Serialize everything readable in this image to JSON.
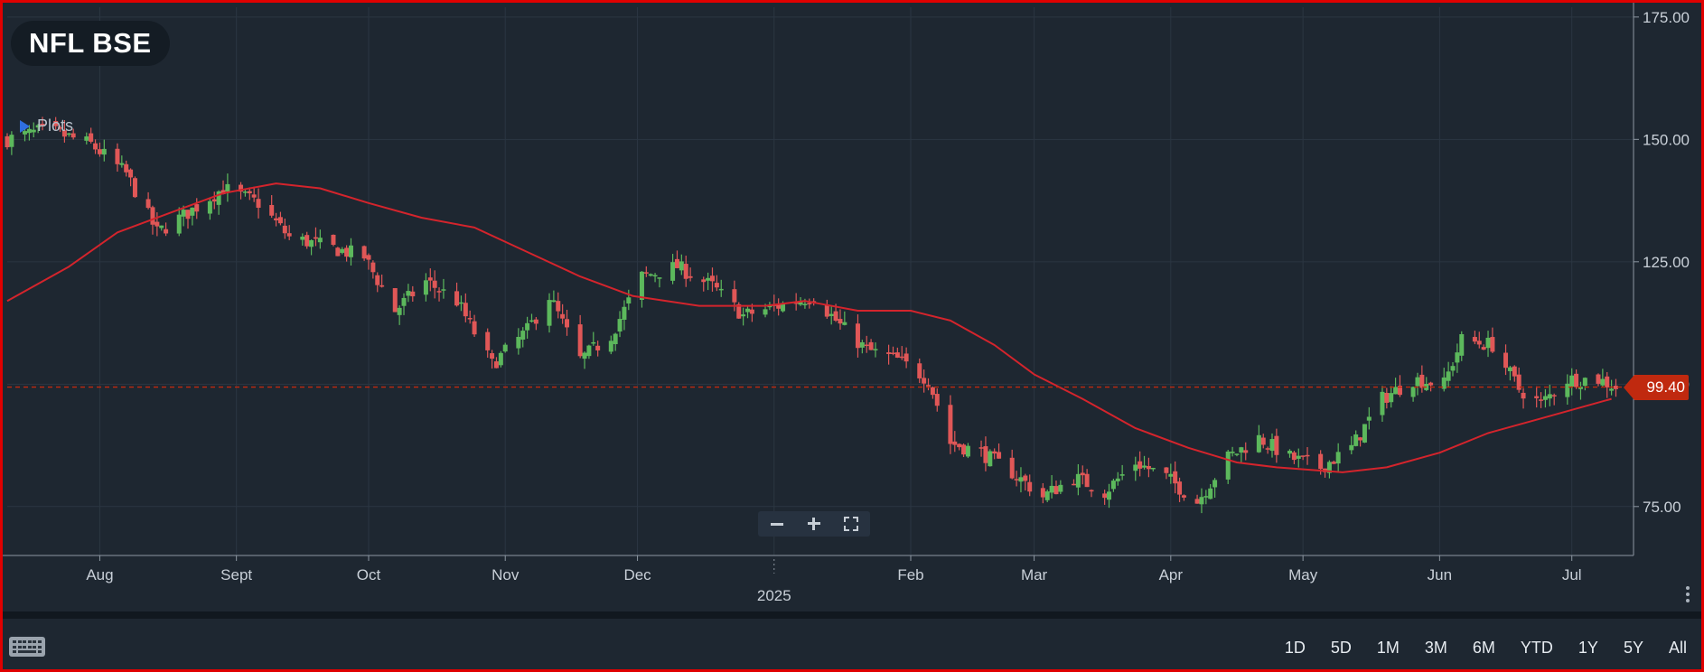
{
  "symbol": "NFL BSE",
  "plots_label": "Plots",
  "last_price_label": "99.40",
  "range_buttons": [
    "1D",
    "5D",
    "1M",
    "3M",
    "6M",
    "YTD",
    "1Y",
    "5Y",
    "All"
  ],
  "colors": {
    "background": "#1e2731",
    "up_candle": "#5cb85c",
    "down_candle": "#e05757",
    "moving_average": "#d4242c",
    "last_price": "#c0290f",
    "grid": "#2b3642",
    "axis_text": "#c9d0d8"
  },
  "chart_data": {
    "type": "candlestick",
    "title": "NFL BSE",
    "y_axis": {
      "min": 65,
      "max": 177,
      "ticks": [
        "75.00",
        "100.00",
        "125.00",
        "150.00",
        "175.00"
      ],
      "tick_values": [
        75,
        100,
        125,
        150,
        175
      ],
      "position": "right"
    },
    "x_axis": {
      "start": "2024-07-11",
      "end": "2025-07-15",
      "month_ticks": [
        {
          "label": "Aug",
          "date": "2024-08-01"
        },
        {
          "label": "Sept",
          "date": "2024-09-01"
        },
        {
          "label": "Oct",
          "date": "2024-10-01"
        },
        {
          "label": "Nov",
          "date": "2024-11-01"
        },
        {
          "label": "Dec",
          "date": "2024-12-01"
        },
        {
          "label": "Feb",
          "date": "2025-02-01"
        },
        {
          "label": "Mar",
          "date": "2025-03-01"
        },
        {
          "label": "Apr",
          "date": "2025-04-01"
        },
        {
          "label": "May",
          "date": "2025-05-01"
        },
        {
          "label": "Jun",
          "date": "2025-06-01"
        },
        {
          "label": "Jul",
          "date": "2025-07-01"
        }
      ],
      "year_label": {
        "label": "2025",
        "date": "2025-01-01"
      }
    },
    "grid": true,
    "last_price": 99.4,
    "price_path_anchors": [
      [
        "2024-07-11",
        150
      ],
      [
        "2024-07-20",
        152
      ],
      [
        "2024-07-30",
        149
      ],
      [
        "2024-08-07",
        143
      ],
      [
        "2024-08-14",
        131
      ],
      [
        "2024-08-21",
        135
      ],
      [
        "2024-08-29",
        140
      ],
      [
        "2024-09-06",
        137
      ],
      [
        "2024-09-13",
        130
      ],
      [
        "2024-09-22",
        128
      ],
      [
        "2024-09-30",
        126
      ],
      [
        "2024-10-07",
        115
      ],
      [
        "2024-10-14",
        121
      ],
      [
        "2024-10-21",
        117
      ],
      [
        "2024-10-29",
        104
      ],
      [
        "2024-11-06",
        111
      ],
      [
        "2024-11-11",
        118
      ],
      [
        "2024-11-18",
        105
      ],
      [
        "2024-11-25",
        110
      ],
      [
        "2024-12-02",
        122
      ],
      [
        "2024-12-10",
        124
      ],
      [
        "2024-12-18",
        120
      ],
      [
        "2024-12-25",
        114
      ],
      [
        "2025-01-02",
        116
      ],
      [
        "2025-01-10",
        118
      ],
      [
        "2025-01-16",
        112
      ],
      [
        "2025-01-22",
        107
      ],
      [
        "2025-01-29",
        105
      ],
      [
        "2025-02-05",
        101
      ],
      [
        "2025-02-10",
        88
      ],
      [
        "2025-02-17",
        86
      ],
      [
        "2025-02-24",
        82
      ],
      [
        "2025-03-03",
        77
      ],
      [
        "2025-03-10",
        81
      ],
      [
        "2025-03-17",
        78
      ],
      [
        "2025-03-24",
        84
      ],
      [
        "2025-03-31",
        81
      ],
      [
        "2025-04-07",
        76
      ],
      [
        "2025-04-14",
        85
      ],
      [
        "2025-04-21",
        89
      ],
      [
        "2025-04-28",
        85
      ],
      [
        "2025-05-05",
        83
      ],
      [
        "2025-05-12",
        87
      ],
      [
        "2025-05-19",
        97
      ],
      [
        "2025-05-26",
        101
      ],
      [
        "2025-06-02",
        100
      ],
      [
        "2025-06-06",
        109
      ],
      [
        "2025-06-13",
        108
      ],
      [
        "2025-06-19",
        99
      ],
      [
        "2025-06-24",
        96
      ],
      [
        "2025-06-30",
        101
      ],
      [
        "2025-07-07",
        101
      ],
      [
        "2025-07-11",
        99.4
      ]
    ],
    "moving_average": [
      [
        "2024-07-11",
        117
      ],
      [
        "2024-07-25",
        124
      ],
      [
        "2024-08-05",
        131
      ],
      [
        "2024-08-17",
        135
      ],
      [
        "2024-08-29",
        139
      ],
      [
        "2024-09-10",
        141
      ],
      [
        "2024-09-20",
        140
      ],
      [
        "2024-10-01",
        137
      ],
      [
        "2024-10-13",
        134
      ],
      [
        "2024-10-25",
        132
      ],
      [
        "2024-11-06",
        127
      ],
      [
        "2024-11-18",
        122
      ],
      [
        "2024-11-30",
        118
      ],
      [
        "2024-12-15",
        116
      ],
      [
        "2024-12-30",
        116
      ],
      [
        "2025-01-08",
        117
      ],
      [
        "2025-01-20",
        115
      ],
      [
        "2025-02-01",
        115
      ],
      [
        "2025-02-10",
        113
      ],
      [
        "2025-02-20",
        108
      ],
      [
        "2025-03-01",
        102
      ],
      [
        "2025-03-12",
        97
      ],
      [
        "2025-03-24",
        91
      ],
      [
        "2025-04-05",
        87
      ],
      [
        "2025-04-16",
        84
      ],
      [
        "2025-04-25",
        83
      ],
      [
        "2025-05-10",
        82
      ],
      [
        "2025-05-20",
        83
      ],
      [
        "2025-06-01",
        86
      ],
      [
        "2025-06-12",
        90
      ],
      [
        "2025-06-24",
        93
      ],
      [
        "2025-07-10",
        97
      ]
    ]
  }
}
